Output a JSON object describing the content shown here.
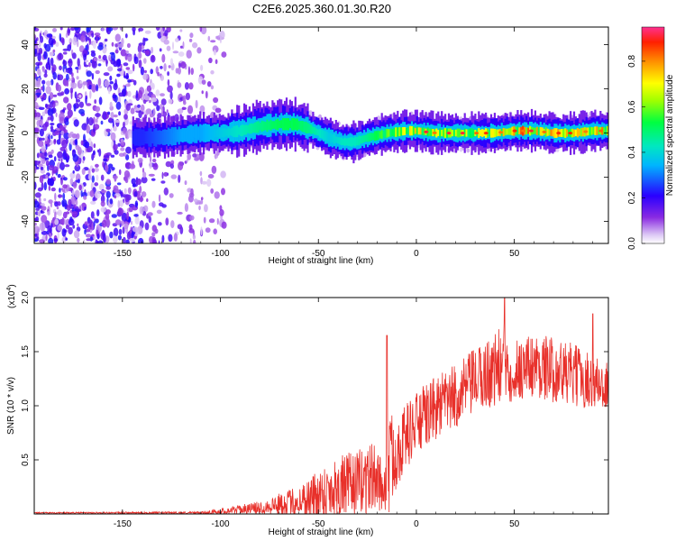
{
  "figure": {
    "title": "C2E6.2025.360.01.30.R20"
  },
  "chart_data": [
    {
      "type": "heatmap",
      "id": "spectrogram",
      "xlabel": "Height of straight line (km)",
      "ylabel": "Frequency (Hz)",
      "xlim": [
        -195,
        98
      ],
      "ylim": [
        -50,
        48
      ],
      "x_ticks": [
        -150,
        -100,
        -50,
        0,
        50
      ],
      "x_tick_labels": [
        "-150",
        "-100",
        "-50",
        "0",
        "50"
      ],
      "y_ticks": [
        40,
        20,
        0,
        -20,
        -40
      ],
      "y_tick_labels": [
        "40",
        "20",
        "0",
        "-20",
        "-40"
      ],
      "colorbar": {
        "label": "Normalized spectral amplitude",
        "range": [
          0,
          0.95
        ],
        "ticks": [
          0.0,
          0.2,
          0.4,
          0.6,
          0.8
        ],
        "tick_labels": [
          "0.0",
          "0.2",
          "0.4",
          "0.6",
          "0.8"
        ],
        "colormap": "rainbow"
      },
      "ridge": {
        "description": "peak frequency vs height",
        "x": [
          -140,
          -130,
          -120,
          -110,
          -100,
          -90,
          -80,
          -70,
          -62,
          -55,
          -45,
          -38,
          -32,
          -25,
          -15,
          -5,
          0,
          10,
          20,
          30,
          40,
          50,
          60,
          70,
          80,
          90,
          97
        ],
        "freq": [
          -2,
          -2,
          -1,
          0,
          0,
          1,
          3,
          4,
          4,
          2,
          -2,
          -4,
          -4,
          -2,
          0,
          1,
          1,
          0,
          0,
          0,
          0,
          1,
          1,
          0,
          0,
          1,
          1
        ],
        "amplitude": [
          0.25,
          0.3,
          0.35,
          0.35,
          0.4,
          0.45,
          0.5,
          0.55,
          0.55,
          0.5,
          0.4,
          0.45,
          0.45,
          0.5,
          0.65,
          0.75,
          0.8,
          0.75,
          0.7,
          0.75,
          0.75,
          0.95,
          0.85,
          0.85,
          0.8,
          0.8,
          0.9
        ]
      },
      "noise_region_km": [
        -195,
        -108
      ]
    },
    {
      "type": "line",
      "id": "snr",
      "xlabel": "Height of straight line (km)",
      "ylabel": "SNR (10 * v/v)",
      "y_multiplier": "(x10",
      "y_multiplier_exp": "4",
      "y_multiplier_close": ")",
      "xlim": [
        -195,
        98
      ],
      "ylim": [
        0,
        2.0
      ],
      "x_ticks": [
        -150,
        -100,
        -50,
        0,
        50
      ],
      "x_tick_labels": [
        "-150",
        "-100",
        "-50",
        "0",
        "50"
      ],
      "y_ticks": [
        2.0,
        1.5,
        1.0,
        0.5
      ],
      "y_tick_labels": [
        "2.0",
        "1.5",
        "1.0",
        "0.5"
      ],
      "color": "#e8302a",
      "envelope": {
        "x": [
          -195,
          -110,
          -100,
          -90,
          -80,
          -70,
          -60,
          -50,
          -40,
          -30,
          -25,
          -20,
          -16,
          -14,
          -12,
          -10,
          -5,
          0,
          10,
          20,
          30,
          40,
          45,
          50,
          60,
          70,
          80,
          90,
          98
        ],
        "base": [
          0.01,
          0.01,
          0.02,
          0.04,
          0.05,
          0.08,
          0.1,
          0.15,
          0.22,
          0.25,
          0.3,
          0.3,
          0.2,
          0.4,
          0.5,
          0.55,
          0.7,
          0.8,
          0.95,
          1.05,
          1.2,
          1.3,
          1.35,
          1.3,
          1.35,
          1.3,
          1.25,
          1.2,
          1.15
        ],
        "amplitude": [
          0.005,
          0.01,
          0.03,
          0.04,
          0.06,
          0.1,
          0.15,
          0.25,
          0.3,
          0.3,
          0.35,
          0.3,
          0.2,
          0.5,
          0.4,
          0.35,
          0.3,
          0.3,
          0.3,
          0.3,
          0.3,
          0.35,
          0.4,
          0.3,
          0.3,
          0.3,
          0.3,
          0.25,
          0.25
        ]
      },
      "spikes": [
        {
          "x": -15,
          "y": 1.65
        },
        {
          "x": 45,
          "y": 2.0
        },
        {
          "x": 90,
          "y": 1.85
        }
      ]
    }
  ]
}
